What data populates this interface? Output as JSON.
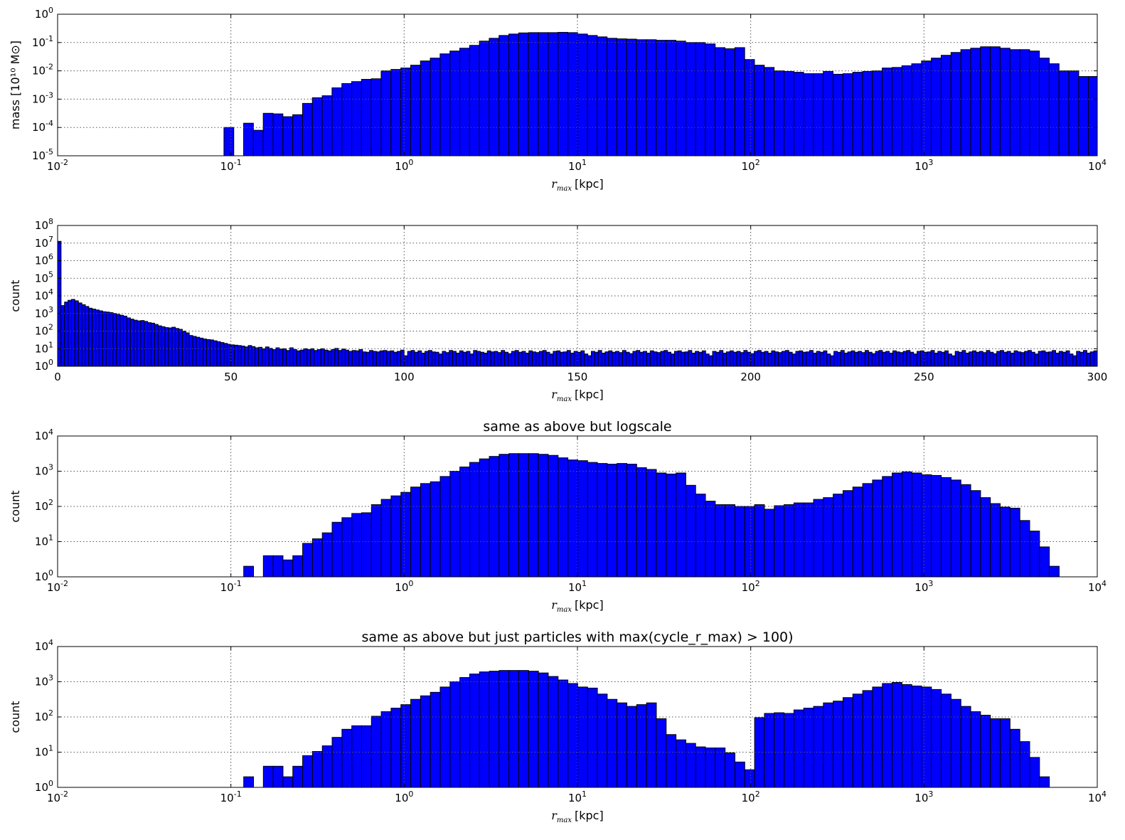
{
  "colors": {
    "bar_fill": "#0000ff",
    "bar_edge": "#000000",
    "grid": "#555555",
    "background": "#ffffff"
  },
  "chart_data": [
    {
      "type": "bar",
      "title": "",
      "xlabel": {
        "symbol": "r",
        "subscript": "max",
        "unit": "[kpc]"
      },
      "ylabel": "mass [10¹⁰ M⊙]",
      "xscale": "log",
      "yscale": "log",
      "xlim": [
        0.01,
        10000
      ],
      "ylim": [
        1e-05,
        1
      ],
      "grid": true,
      "xticks": [
        {
          "base": "10",
          "exp": "-2",
          "value": 0.01
        },
        {
          "base": "10",
          "exp": "-1",
          "value": 0.1
        },
        {
          "base": "10",
          "exp": "0",
          "value": 1
        },
        {
          "base": "10",
          "exp": "1",
          "value": 10
        },
        {
          "base": "10",
          "exp": "2",
          "value": 100
        },
        {
          "base": "10",
          "exp": "3",
          "value": 1000
        },
        {
          "base": "10",
          "exp": "4",
          "value": 10000
        }
      ],
      "yticks": [
        {
          "base": "10",
          "exp": "-5",
          "value": 1e-05
        },
        {
          "base": "10",
          "exp": "-4",
          "value": 0.0001
        },
        {
          "base": "10",
          "exp": "-3",
          "value": 0.001
        },
        {
          "base": "10",
          "exp": "-2",
          "value": 0.01
        },
        {
          "base": "10",
          "exp": "-1",
          "value": 0.1
        },
        {
          "base": "10",
          "exp": "0",
          "value": 1
        }
      ],
      "bins": {
        "log10_start": -1.04,
        "log10_width": 0.0567
      },
      "values_log10": [
        -4.0,
        null,
        -3.85,
        -4.1,
        -3.5,
        -3.52,
        -3.62,
        -3.55,
        -3.15,
        -2.95,
        -2.88,
        -2.6,
        -2.45,
        -2.38,
        -2.3,
        -2.28,
        -2.0,
        -1.95,
        -1.9,
        -1.8,
        -1.65,
        -1.55,
        -1.4,
        -1.3,
        -1.2,
        -1.1,
        -0.95,
        -0.85,
        -0.75,
        -0.7,
        -0.66,
        -0.65,
        -0.65,
        -0.65,
        -0.64,
        -0.65,
        -0.7,
        -0.75,
        -0.8,
        -0.85,
        -0.87,
        -0.88,
        -0.9,
        -0.9,
        -0.92,
        -0.92,
        -0.95,
        -1.0,
        -1.0,
        -1.05,
        -1.18,
        -1.22,
        -1.18,
        -1.6,
        -1.8,
        -1.88,
        -2.0,
        -2.02,
        -2.05,
        -2.1,
        -2.1,
        -2.02,
        -2.12,
        -2.1,
        -2.05,
        -2.02,
        -2.0,
        -1.9,
        -1.88,
        -1.82,
        -1.75,
        -1.65,
        -1.55,
        -1.45,
        -1.35,
        -1.25,
        -1.2,
        -1.15,
        -1.15,
        -1.2,
        -1.25,
        -1.25,
        -1.3,
        -1.55,
        -1.75,
        -2.0,
        -2.0,
        -2.2,
        -2.2,
        -2.52,
        -2.85,
        -3.28,
        -3.8,
        -4.12
      ]
    },
    {
      "type": "bar",
      "title": "",
      "xlabel": {
        "symbol": "r",
        "subscript": "max",
        "unit": "[kpc]"
      },
      "ylabel": "count",
      "xscale": "linear",
      "yscale": "log",
      "xlim": [
        0,
        300
      ],
      "ylim": [
        1,
        100000000
      ],
      "grid": true,
      "xticks": [
        {
          "label": "0",
          "value": 0
        },
        {
          "label": "50",
          "value": 50
        },
        {
          "label": "100",
          "value": 100
        },
        {
          "label": "150",
          "value": 150
        },
        {
          "label": "200",
          "value": 200
        },
        {
          "label": "250",
          "value": 250
        },
        {
          "label": "300",
          "value": 300
        }
      ],
      "yticks": [
        {
          "base": "10",
          "exp": "0",
          "value": 1
        },
        {
          "base": "10",
          "exp": "1",
          "value": 10
        },
        {
          "base": "10",
          "exp": "2",
          "value": 100
        },
        {
          "base": "10",
          "exp": "3",
          "value": 1000
        },
        {
          "base": "10",
          "exp": "4",
          "value": 10000
        },
        {
          "base": "10",
          "exp": "5",
          "value": 100000
        },
        {
          "base": "10",
          "exp": "6",
          "value": 1000000
        },
        {
          "base": "10",
          "exp": "7",
          "value": 10000000
        },
        {
          "base": "10",
          "exp": "8",
          "value": 100000000
        }
      ],
      "bins": {
        "start": 0,
        "width": 1
      },
      "values_log10": [
        7.1,
        3.45,
        3.65,
        3.75,
        3.8,
        3.72,
        3.6,
        3.5,
        3.4,
        3.3,
        3.25,
        3.2,
        3.15,
        3.1,
        3.08,
        3.05,
        3.0,
        2.95,
        2.9,
        2.85,
        2.75,
        2.68,
        2.62,
        2.58,
        2.6,
        2.55,
        2.48,
        2.45,
        2.38,
        2.3,
        2.25,
        2.2,
        2.18,
        2.22,
        2.15,
        2.1,
        2.0,
        1.9,
        1.75,
        1.7,
        1.65,
        1.6,
        1.55,
        1.52,
        1.5,
        1.45,
        1.4,
        1.35,
        1.3,
        1.25,
        1.22,
        1.2,
        1.18,
        1.15,
        1.1,
        1.18,
        1.12,
        1.05,
        1.08,
        1.0,
        1.1,
        1.02,
        0.95,
        1.05,
        0.98,
        1.0,
        0.9,
        1.05,
        0.95,
        0.88,
        0.92,
        1.0,
        0.95,
        1.0,
        0.9,
        0.95,
        1.0,
        0.92,
        0.88,
        0.95,
        1.02,
        0.9,
        0.98,
        0.92,
        0.85,
        0.9,
        0.88,
        0.95,
        0.82,
        0.8,
        0.9,
        0.85,
        0.82,
        0.88,
        0.9,
        0.85,
        0.88,
        0.8,
        0.85,
        0.92,
        0.6,
        0.85,
        0.9,
        0.8,
        0.88,
        0.75,
        0.85,
        0.9,
        0.82,
        0.8,
        0.7,
        0.85,
        0.78,
        0.9,
        0.85,
        0.75,
        0.88,
        0.8,
        0.85,
        0.7,
        0.9,
        0.85,
        0.8,
        0.75,
        0.88,
        0.82,
        0.85,
        0.78,
        0.9,
        0.8,
        0.72,
        0.85,
        0.9,
        0.8,
        0.85,
        0.75,
        0.88,
        0.82,
        0.78,
        0.85,
        0.9,
        0.8,
        0.7,
        0.85,
        0.88,
        0.8,
        0.82,
        0.9,
        0.75,
        0.85,
        0.8,
        0.88,
        0.7,
        0.6,
        0.85,
        0.8,
        0.9,
        0.75,
        0.82,
        0.88,
        0.8,
        0.85,
        0.78,
        0.9,
        0.8,
        0.72,
        0.85,
        0.9,
        0.8,
        0.85,
        0.75,
        0.88,
        0.82,
        0.78,
        0.85,
        0.9,
        0.8,
        0.7,
        0.85,
        0.88,
        0.8,
        0.82,
        0.9,
        0.75,
        0.85,
        0.8,
        0.88,
        0.7,
        0.6,
        0.85,
        0.8,
        0.9,
        0.75,
        0.82,
        0.88,
        0.8,
        0.85,
        0.78,
        0.9,
        0.8,
        0.72,
        0.85,
        0.9,
        0.8,
        0.85,
        0.75,
        0.88,
        0.82,
        0.78,
        0.85,
        0.9,
        0.8,
        0.7,
        0.85,
        0.88,
        0.8,
        0.82,
        0.9,
        0.75,
        0.85,
        0.8,
        0.88,
        0.7,
        0.6,
        0.85,
        0.8,
        0.9,
        0.75,
        0.82,
        0.88,
        0.8,
        0.85,
        0.78,
        0.9,
        0.8,
        0.72,
        0.85,
        0.9,
        0.8,
        0.85,
        0.75,
        0.88,
        0.82,
        0.78,
        0.85,
        0.9,
        0.8,
        0.7,
        0.85,
        0.88,
        0.8,
        0.82,
        0.9,
        0.75,
        0.85,
        0.8,
        0.88,
        0.7,
        0.6,
        0.85,
        0.8,
        0.9,
        0.75,
        0.82,
        0.88,
        0.8,
        0.85,
        0.78,
        0.9,
        0.8,
        0.72,
        0.85,
        0.9,
        0.8,
        0.85,
        0.75,
        0.88,
        0.82,
        0.78,
        0.85,
        0.9,
        0.8,
        0.7,
        0.85,
        0.88,
        0.8,
        0.82,
        0.9,
        0.75,
        0.85,
        0.8,
        0.88,
        0.7,
        0.6,
        0.85,
        0.8,
        0.9,
        0.75,
        0.82,
        0.88,
        0.8,
        0.85,
        0.78,
        0.9,
        0.95,
        1.0,
        0.95,
        1.05,
        0.92,
        0.98,
        1.0,
        0.9,
        1.05
      ]
    },
    {
      "type": "bar",
      "title": "same as above but logscale",
      "xlabel": {
        "symbol": "r",
        "subscript": "max",
        "unit": "[kpc]"
      },
      "ylabel": "count",
      "xscale": "log",
      "yscale": "log",
      "xlim": [
        0.01,
        10000
      ],
      "ylim": [
        1,
        10000
      ],
      "grid": true,
      "xticks": [
        {
          "base": "10",
          "exp": "-2",
          "value": 0.01
        },
        {
          "base": "10",
          "exp": "-1",
          "value": 0.1
        },
        {
          "base": "10",
          "exp": "0",
          "value": 1
        },
        {
          "base": "10",
          "exp": "1",
          "value": 10
        },
        {
          "base": "10",
          "exp": "2",
          "value": 100
        },
        {
          "base": "10",
          "exp": "3",
          "value": 1000
        },
        {
          "base": "10",
          "exp": "4",
          "value": 10000
        }
      ],
      "yticks": [
        {
          "base": "10",
          "exp": "0",
          "value": 1
        },
        {
          "base": "10",
          "exp": "1",
          "value": 10
        },
        {
          "base": "10",
          "exp": "2",
          "value": 100
        },
        {
          "base": "10",
          "exp": "3",
          "value": 1000
        },
        {
          "base": "10",
          "exp": "4",
          "value": 10000
        }
      ],
      "bins": {
        "log10_start": -0.926,
        "log10_width": 0.0567
      },
      "values_log10": [
        0.3,
        null,
        0.6,
        0.6,
        0.48,
        0.6,
        0.95,
        1.08,
        1.25,
        1.55,
        1.68,
        1.8,
        1.82,
        2.05,
        2.2,
        2.3,
        2.4,
        2.55,
        2.65,
        2.7,
        2.85,
        3.0,
        3.12,
        3.25,
        3.35,
        3.42,
        3.48,
        3.5,
        3.5,
        3.5,
        3.48,
        3.45,
        3.38,
        3.32,
        3.3,
        3.25,
        3.22,
        3.2,
        3.22,
        3.2,
        3.1,
        3.05,
        2.95,
        2.92,
        2.95,
        2.6,
        2.35,
        2.15,
        2.05,
        2.05,
        2.0,
        2.0,
        2.05,
        1.92,
        2.02,
        2.05,
        2.1,
        2.1,
        2.2,
        2.25,
        2.35,
        2.45,
        2.55,
        2.65,
        2.75,
        2.85,
        2.95,
        2.98,
        2.95,
        2.9,
        2.88,
        2.82,
        2.75,
        2.62,
        2.45,
        2.25,
        2.08,
        1.98,
        1.95,
        1.6,
        1.3,
        0.85,
        0.3
      ]
    },
    {
      "type": "bar",
      "title": "same as above but just particles with max(cycle_r_max) > 100)",
      "xlabel": {
        "symbol": "r",
        "subscript": "max",
        "unit": "[kpc]"
      },
      "ylabel": "count",
      "xscale": "log",
      "yscale": "log",
      "xlim": [
        0.01,
        10000
      ],
      "ylim": [
        1,
        10000
      ],
      "grid": true,
      "xticks": [
        {
          "base": "10",
          "exp": "-2",
          "value": 0.01
        },
        {
          "base": "10",
          "exp": "-1",
          "value": 0.1
        },
        {
          "base": "10",
          "exp": "0",
          "value": 1
        },
        {
          "base": "10",
          "exp": "1",
          "value": 10
        },
        {
          "base": "10",
          "exp": "2",
          "value": 100
        },
        {
          "base": "10",
          "exp": "3",
          "value": 1000
        },
        {
          "base": "10",
          "exp": "4",
          "value": 10000
        }
      ],
      "yticks": [
        {
          "base": "10",
          "exp": "0",
          "value": 1
        },
        {
          "base": "10",
          "exp": "1",
          "value": 10
        },
        {
          "base": "10",
          "exp": "2",
          "value": 100
        },
        {
          "base": "10",
          "exp": "3",
          "value": 1000
        },
        {
          "base": "10",
          "exp": "4",
          "value": 10000
        }
      ],
      "bins": {
        "log10_start": -0.926,
        "log10_width": 0.0567
      },
      "values_log10": [
        0.3,
        null,
        0.6,
        0.6,
        0.3,
        0.6,
        0.9,
        1.02,
        1.18,
        1.42,
        1.65,
        1.75,
        1.75,
        2.02,
        2.15,
        2.25,
        2.35,
        2.5,
        2.6,
        2.7,
        2.85,
        3.0,
        3.12,
        3.22,
        3.28,
        3.3,
        3.32,
        3.32,
        3.32,
        3.3,
        3.25,
        3.15,
        3.05,
        2.95,
        2.85,
        2.82,
        2.65,
        2.5,
        2.4,
        2.3,
        2.35,
        2.4,
        1.95,
        1.5,
        1.35,
        1.25,
        1.15,
        1.12,
        1.12,
        0.98,
        0.72,
        0.5,
        1.98,
        2.1,
        2.12,
        2.1,
        2.2,
        2.25,
        2.3,
        2.4,
        2.45,
        2.55,
        2.65,
        2.75,
        2.85,
        2.95,
        2.98,
        2.92,
        2.88,
        2.85,
        2.78,
        2.65,
        2.5,
        2.3,
        2.15,
        2.05,
        1.95,
        1.95,
        1.65,
        1.3,
        0.85,
        0.3
      ]
    }
  ]
}
